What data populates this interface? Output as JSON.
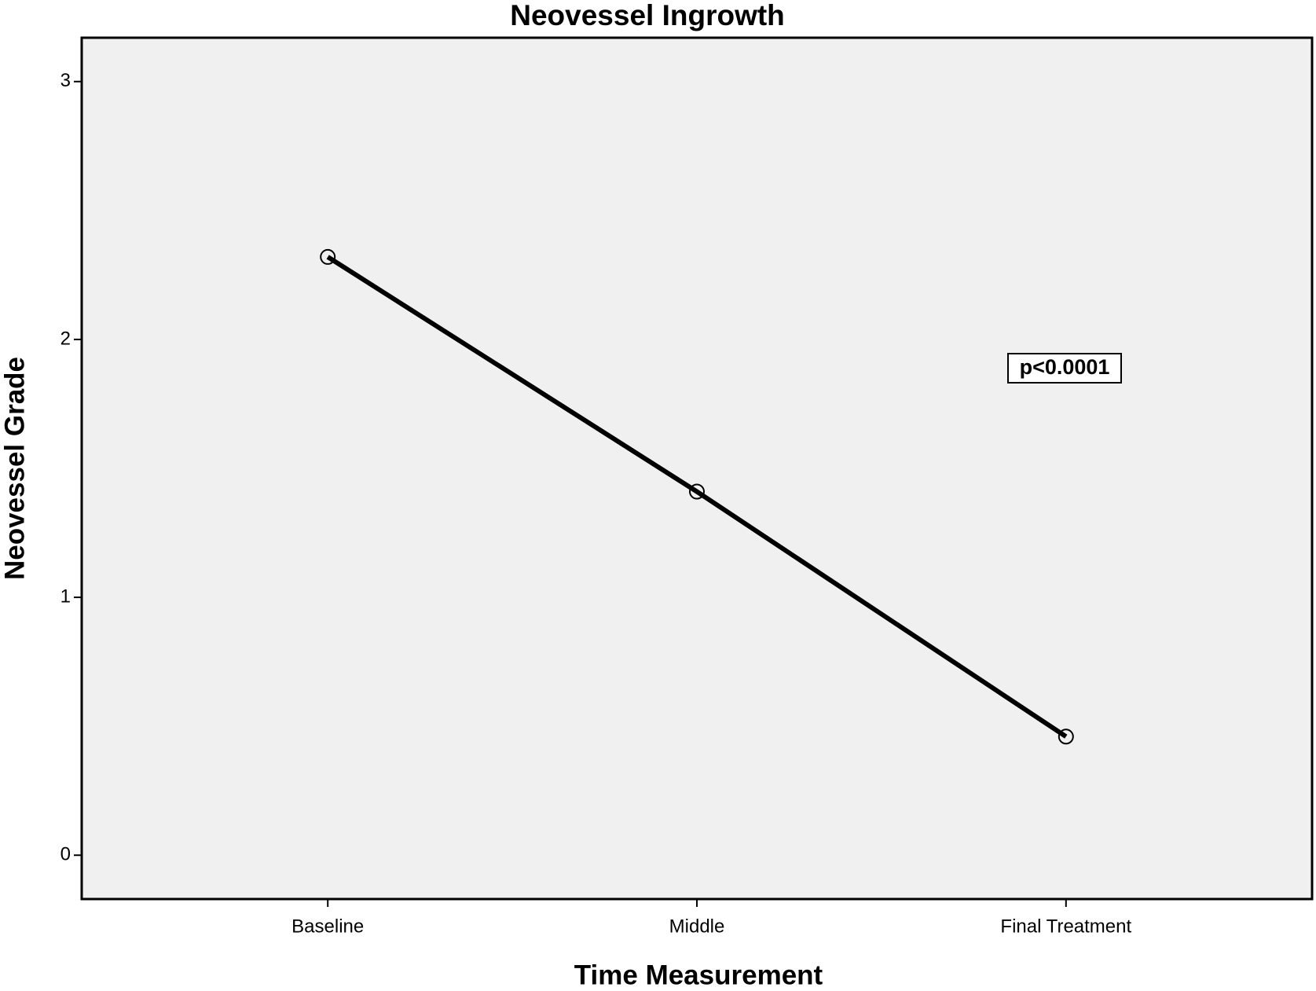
{
  "chart_data": {
    "type": "line",
    "title": "Neovessel Ingrowth",
    "x_label": "Time Measurement",
    "y_label": "Neovessel Grade",
    "categories": [
      "Baseline",
      "Middle",
      "Final Treatment"
    ],
    "series": [
      {
        "name": "Neovessel Grade",
        "color": "#000000",
        "values": [
          2.32,
          1.41,
          0.46
        ]
      }
    ],
    "ylim": [
      -0.17,
      3.17
    ],
    "yticks": [
      0,
      1,
      2,
      3
    ],
    "annotation": "p<0.0001",
    "background": "#f0f0f0",
    "grid": false
  }
}
